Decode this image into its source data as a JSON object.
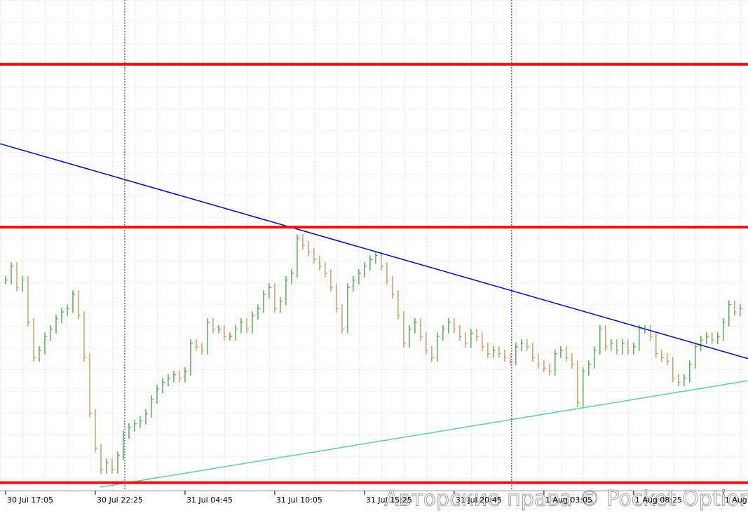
{
  "chart_data": {
    "type": "bar",
    "values": [
      42.9,
      45.7,
      41.4,
      42.9,
      34.3,
      27.1,
      28.6,
      31.4,
      32.9,
      35,
      36.4,
      37.1,
      40,
      35.7,
      27.1,
      15.7,
      8.6,
      4.3,
      5.7,
      4.3,
      7.1,
      11.4,
      12.9,
      13.6,
      14.3,
      15.7,
      18.6,
      20.7,
      22.1,
      22.9,
      23.6,
      22.9,
      24.3,
      30,
      29.3,
      28.6,
      34.3,
      32.9,
      32.9,
      31.4,
      31.4,
      32.9,
      34.3,
      32.9,
      35.7,
      37.1,
      40,
      41.4,
      37.1,
      38.6,
      42.9,
      44.3,
      51.4,
      50,
      48.6,
      47.1,
      45.7,
      44.3,
      41.4,
      37.1,
      32.9,
      41.4,
      42.9,
      44.3,
      45.7,
      47.1,
      47.9,
      45.7,
      42.9,
      40,
      35.7,
      30,
      32.9,
      34.3,
      31.4,
      28.6,
      27.1,
      31.4,
      32.9,
      34.3,
      32.9,
      31.4,
      30,
      32.1,
      31.4,
      29.3,
      27.9,
      28.6,
      27.9,
      27.1,
      26.4,
      29.3,
      30,
      29.3,
      27.1,
      25.7,
      25,
      24.3,
      27.9,
      28.6,
      27.1,
      25.7,
      17.9,
      24.3,
      25.7,
      28.6,
      32.9,
      29.3,
      30,
      28.6,
      30,
      28.6,
      29.3,
      32.9,
      32.9,
      31.4,
      27.9,
      27.1,
      26.4,
      22.9,
      22.1,
      22.9,
      25.7,
      29.3,
      30.7,
      31.4,
      30.7,
      31.4,
      34.3,
      37.9,
      36.4,
      37.1
    ],
    "up_color": "#2e9a2e",
    "down_color": "#c8843a",
    "xlim": [
      -1,
      132.4
    ],
    "ylim": [
      0,
      100
    ],
    "xticks": [
      {
        "value": 0,
        "label": "30 Jul 17:05"
      },
      {
        "value": 16,
        "label": "30 Jul 22:25"
      },
      {
        "value": 32,
        "label": "31 Jul 04:45"
      },
      {
        "value": 48,
        "label": "31 Jul 10:05"
      },
      {
        "value": 64,
        "label": "31 Jul 15:25"
      },
      {
        "value": 80,
        "label": "31 Jul 20:45"
      },
      {
        "value": 96,
        "label": "1 Aug 03:05"
      },
      {
        "value": 112,
        "label": "1 Aug 08:25"
      },
      {
        "value": 128,
        "label": "1 Aug"
      }
    ],
    "separators": [
      21.25,
      90.25
    ],
    "levels": {
      "color": "#ee1111",
      "values": [
        86.9,
        53.7,
        1.6
      ]
    },
    "trendlines": [
      {
        "color": "#0a1aa8",
        "x": [
          -1,
          132.4
        ],
        "values": [
          70.7,
          26.9
        ]
      },
      {
        "color": "#6cccb0",
        "x": [
          16.9,
          132.4
        ],
        "values": [
          0.7,
          22.4
        ]
      }
    ],
    "watermark": "Авторские права © Pocket Option"
  }
}
